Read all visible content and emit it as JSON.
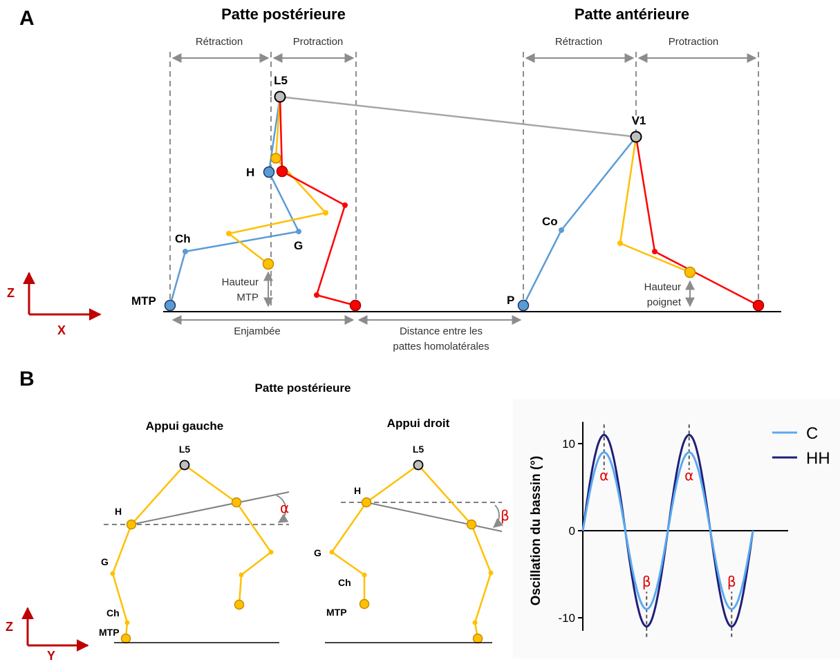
{
  "panel_a": {
    "letter": "A",
    "hind_title": "Patte postérieure",
    "fore_title": "Patte antérieure",
    "retraction": "Rétraction",
    "protraction": "Protraction",
    "joints": {
      "l5": "L5",
      "h": "H",
      "g": "G",
      "ch": "Ch",
      "mtp": "MTP",
      "v1": "V1",
      "co": "Co",
      "p": "P"
    },
    "hauteur": "Hauteur",
    "mtp_word": "MTP",
    "poignet": "poignet",
    "enjambee": "Enjambée",
    "distance_l1": "Distance entre les",
    "distance_l2": "pattes  homolatérales",
    "axis_z": "Z",
    "axis_x": "X"
  },
  "panel_b": {
    "letter": "B",
    "title": "Patte postérieure",
    "appui_gauche": "Appui gauche",
    "appui_droit": "Appui droit",
    "joints": {
      "l5": "L5",
      "h": "H",
      "g": "G",
      "ch": "Ch",
      "mtp": "MTP"
    },
    "alpha": "α",
    "beta": "β",
    "axis_z": "Z",
    "axis_y": "Y"
  },
  "colors": {
    "blue": "#5b9bd5",
    "yellow": "#ffc000",
    "red": "#ff0000",
    "gray": "#a6a6a6",
    "dark_navy": "#1f1f7a",
    "light_blue": "#5aa9f0",
    "axis_red": "#c00000"
  },
  "chart_data": {
    "type": "line",
    "title": "",
    "xlabel": "",
    "ylabel": "Oscillation du bassin (°)",
    "ylim": [
      -11.5,
      12.5
    ],
    "yticks": [
      "10",
      "0",
      "-10"
    ],
    "xlim": [
      0,
      2
    ],
    "x": [
      0,
      0.25,
      0.5,
      0.75,
      1.0,
      1.25,
      1.5,
      1.75,
      2.0
    ],
    "series": [
      {
        "name": "C",
        "values": [
          0,
          9,
          0,
          -9,
          0,
          9,
          0,
          -9,
          0
        ]
      },
      {
        "name": "HH",
        "values": [
          0,
          11,
          0,
          -11,
          0,
          11,
          0,
          -11,
          0
        ]
      }
    ],
    "peak_annotations": [
      "α",
      "β",
      "α",
      "β"
    ],
    "legend_position": "top-right"
  }
}
